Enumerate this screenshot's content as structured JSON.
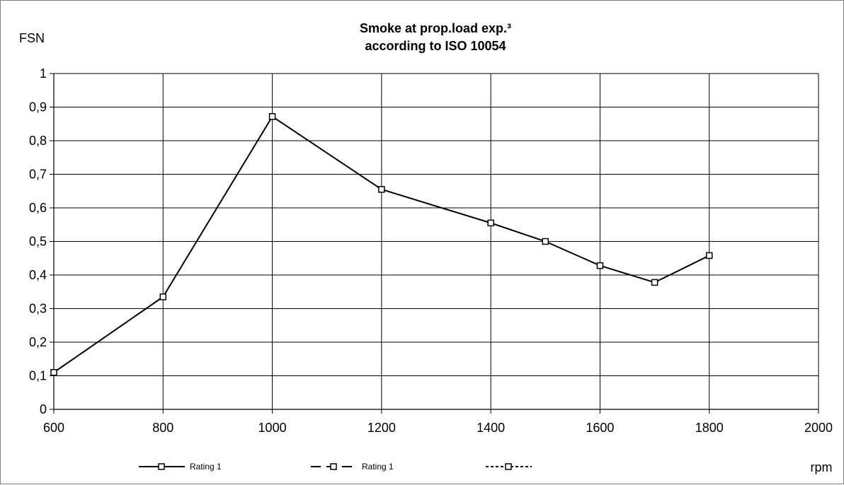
{
  "chart_data": {
    "type": "line",
    "title": "Smoke at prop.load exp.³",
    "subtitle": "according to ISO 10054",
    "ylabel": "FSN",
    "xlabel": "rpm",
    "xlim": [
      600,
      2000
    ],
    "ylim": [
      0,
      1
    ],
    "x_ticks": [
      600,
      800,
      1000,
      1200,
      1400,
      1600,
      1800,
      2000
    ],
    "y_ticks": [
      0,
      0.1,
      0.2,
      0.3,
      0.4,
      0.5,
      0.6,
      0.7,
      0.8,
      0.9,
      1
    ],
    "y_tick_labels": [
      "0",
      "0,1",
      "0,2",
      "0,3",
      "0,4",
      "0,5",
      "0,6",
      "0,7",
      "0,8",
      "0,9",
      "1"
    ],
    "x_tick_labels": [
      "600",
      "800",
      "1000",
      "1200",
      "1400",
      "1600",
      "1800",
      "2000"
    ],
    "grid": true,
    "legend_position": "bottom",
    "series": [
      {
        "name": "Rating 1",
        "line_style": "solid",
        "marker": "square",
        "color": "#000000",
        "points": [
          {
            "x": 600,
            "y": 0.11
          },
          {
            "x": 800,
            "y": 0.335
          },
          {
            "x": 1000,
            "y": 0.872
          },
          {
            "x": 1200,
            "y": 0.655
          },
          {
            "x": 1400,
            "y": 0.555
          },
          {
            "x": 1500,
            "y": 0.5
          },
          {
            "x": 1600,
            "y": 0.428
          },
          {
            "x": 1700,
            "y": 0.378
          },
          {
            "x": 1800,
            "y": 0.458
          }
        ]
      },
      {
        "name": "Rating 1",
        "line_style": "dashed",
        "marker": "square",
        "color": "#000000",
        "points": []
      },
      {
        "name": "",
        "line_style": "dotted",
        "marker": "square",
        "color": "#000000",
        "points": []
      }
    ]
  }
}
